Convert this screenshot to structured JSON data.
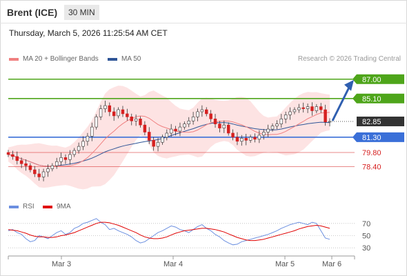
{
  "header": {
    "instrument": "Brent (ICE)",
    "timeframe": "30 MIN"
  },
  "timestamp": "Thursday, March 5, 2026 11:25:54 AM CET",
  "legend": {
    "ma20_label": "MA 20 + Bollinger Bands",
    "ma50_label": "MA 50",
    "credit": "Research © 2026 Trading Central"
  },
  "colors": {
    "resistance": "#4ea51a",
    "support": "#3a6fd8",
    "current": "#333333",
    "lower_levels": "#d62020",
    "ma20": "#f08080",
    "ma50": "#2f5597",
    "bollinger_fill": "#fde0e0",
    "candle_up": "#ffffff",
    "candle_down": "#d62020",
    "rsi": "#6b8fe0",
    "rsi_ma": "#e00000",
    "arrow": "#2f5fb0"
  },
  "levels": [
    {
      "label": "87.00",
      "value": 87.0,
      "type": "resistance"
    },
    {
      "label": "85.10",
      "value": 85.1,
      "type": "resistance"
    },
    {
      "label": "82.85",
      "value": 82.85,
      "type": "current"
    },
    {
      "label": "81.30",
      "value": 81.3,
      "type": "pivot"
    },
    {
      "label": "79.80",
      "value": 79.8,
      "type": "support"
    },
    {
      "label": "78.40",
      "value": 78.4,
      "type": "support"
    }
  ],
  "sub_legend": {
    "rsi_label": "RSI",
    "ma_label": "9MA"
  },
  "rsi_axis": {
    "ticks": [
      "70",
      "50",
      "30"
    ],
    "values": [
      70,
      50,
      30
    ]
  },
  "x_axis": {
    "labels": [
      "Mar 3",
      "Mar 4",
      "Mar 5",
      "Mar 6"
    ]
  },
  "chart_data": {
    "type": "candlestick",
    "ylim": [
      75.8,
      88.0
    ],
    "closes": [
      79.6,
      79.4,
      79.0,
      78.7,
      78.5,
      78.1,
      77.7,
      77.4,
      77.9,
      78.2,
      78.5,
      78.9,
      79.3,
      79.1,
      79.6,
      80.0,
      80.4,
      80.9,
      81.4,
      82.3,
      83.3,
      84.1,
      84.4,
      83.8,
      83.4,
      84.0,
      83.6,
      83.3,
      82.9,
      83.1,
      82.5,
      81.8,
      81.0,
      80.4,
      80.8,
      81.3,
      81.7,
      82.1,
      81.9,
      82.3,
      82.6,
      82.9,
      83.3,
      83.8,
      84.0,
      83.6,
      83.1,
      82.6,
      82.2,
      82.5,
      81.7,
      81.3,
      80.9,
      81.2,
      81.0,
      81.3,
      81.1,
      81.5,
      81.8,
      82.1,
      82.4,
      82.6,
      83.1,
      83.5,
      83.8,
      84.0,
      84.2,
      84.1,
      84.3,
      83.9,
      84.3,
      84.0,
      82.8,
      82.85
    ],
    "rsi": {
      "rsi": [
        58,
        60,
        55,
        52,
        45,
        40,
        42,
        50,
        48,
        45,
        50,
        55,
        58,
        52,
        55,
        62,
        65,
        70,
        72,
        75,
        78,
        72,
        68,
        60,
        62,
        58,
        55,
        52,
        48,
        42,
        38,
        40,
        45,
        50,
        55,
        58,
        62,
        66,
        64,
        60,
        58,
        55,
        60,
        65,
        68,
        62,
        58,
        52,
        48,
        42,
        38,
        35,
        36,
        40,
        42,
        44,
        46,
        48,
        50,
        52,
        55,
        58,
        62,
        65,
        68,
        70,
        72,
        70,
        68,
        72,
        70,
        58,
        46,
        44
      ],
      "ma": [
        60,
        59,
        58,
        56,
        54,
        51,
        49,
        48,
        48,
        47,
        47,
        48,
        50,
        51,
        53,
        55,
        58,
        61,
        64,
        67,
        70,
        72,
        72,
        71,
        69,
        67,
        64,
        61,
        58,
        55,
        51,
        48,
        46,
        45,
        45,
        46,
        48,
        51,
        54,
        56,
        58,
        59,
        60,
        61,
        62,
        62,
        61,
        60,
        58,
        56,
        53,
        50,
        47,
        45,
        43,
        42,
        42,
        43,
        44,
        46,
        48,
        50,
        52,
        54,
        56,
        58,
        61,
        63,
        65,
        66,
        67,
        66,
        64,
        62
      ]
    },
    "projection": {
      "from": 82.85,
      "to": 87.0
    }
  }
}
